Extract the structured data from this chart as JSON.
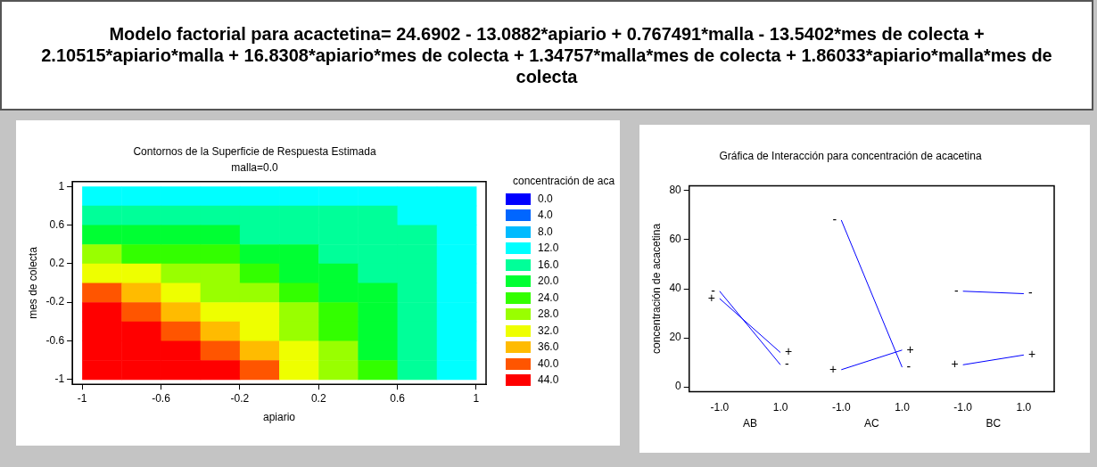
{
  "chart_data": [
    {
      "type": "heatmap",
      "title": "Contornos de la Superficie de Respuesta Estimada",
      "subtitle": "malla=0.0",
      "xlabel": "apiario",
      "ylabel": "mes de colecta",
      "clabel": "concentración de aca",
      "annotations": [
        "Modelo factorial para acactetina= 24.6902 - 13.0882*apiario + 0.767491*malla - 13.5402*mes de colecta + 2.10515*apiario*malla + 16.8308*apiario*mes de colecta + 1.34757*malla*mes de colecta + 1.86033*apiario*malla*mes de colecta"
      ],
      "x": [
        -0.9,
        -0.7,
        -0.5,
        -0.3,
        -0.1,
        0.1,
        0.3,
        0.5,
        0.7,
        0.9
      ],
      "y": [
        0.9,
        0.7,
        0.5,
        0.3,
        0.1,
        -0.1,
        -0.3,
        -0.5,
        -0.7,
        -0.9
      ],
      "cells": [
        [
          11,
          11,
          11,
          12,
          12,
          13,
          13,
          14,
          14,
          14
        ],
        [
          16,
          16,
          16,
          16,
          15,
          15,
          15,
          15,
          14,
          14
        ],
        [
          22,
          21,
          20,
          19,
          18,
          17,
          17,
          16,
          15,
          14
        ],
        [
          28,
          26,
          25,
          23,
          21,
          20,
          18,
          17,
          15,
          13
        ],
        [
          34,
          31,
          29,
          27,
          24,
          22,
          20,
          18,
          15,
          13
        ],
        [
          39,
          36,
          33,
          30,
          28,
          25,
          22,
          19,
          16,
          13
        ],
        [
          45,
          41,
          38,
          34,
          31,
          27,
          23,
          20,
          16,
          12
        ],
        [
          51,
          47,
          42,
          38,
          34,
          29,
          25,
          21,
          16,
          12
        ],
        [
          57,
          52,
          47,
          42,
          37,
          32,
          27,
          22,
          17,
          12
        ],
        [
          62,
          57,
          51,
          45,
          40,
          34,
          28,
          23,
          17,
          11
        ]
      ],
      "cticks": [
        {
          "value": 0,
          "label": "0.0"
        },
        {
          "value": 4,
          "label": "4.0"
        },
        {
          "value": 8,
          "label": "8.0"
        },
        {
          "value": 12,
          "label": "12.0"
        },
        {
          "value": 16,
          "label": "16.0"
        },
        {
          "value": 20,
          "label": "20.0"
        },
        {
          "value": 24,
          "label": "24.0"
        },
        {
          "value": 28,
          "label": "28.0"
        },
        {
          "value": 32,
          "label": "32.0"
        },
        {
          "value": 36,
          "label": "36.0"
        },
        {
          "value": 40,
          "label": "40.0"
        },
        {
          "value": 44,
          "label": "44.0"
        }
      ],
      "xlim": [
        -1.05,
        1.05
      ],
      "ylim": [
        -1.05,
        1.05
      ],
      "xticks": [
        -1,
        -0.6,
        -0.2,
        0.2,
        0.6,
        1
      ],
      "yticks": [
        -1,
        -0.6,
        -0.2,
        0.2,
        0.6,
        1
      ]
    },
    {
      "type": "line",
      "title": "Gráfica de Interacción para concentración de acacetina",
      "ylabel": "concentración de acacetina",
      "categories": [
        "-1.0",
        "1.0",
        "-1.0",
        "1.0",
        "-1.0",
        "1.0"
      ],
      "series": [
        {
          "color": "#0000ff",
          "values": [
            39,
            9,
            null,
            null,
            null,
            null
          ],
          "value_labels": [
            "-",
            "-",
            null,
            null,
            null,
            null
          ]
        },
        {
          "color": "#0000ff",
          "values": [
            36,
            14,
            null,
            null,
            null,
            null
          ],
          "value_labels": [
            "+",
            "+",
            null,
            null,
            null,
            null
          ]
        },
        {
          "color": "#0000ff",
          "values": [
            null,
            null,
            68,
            8,
            null,
            null
          ],
          "value_labels": [
            null,
            null,
            "-",
            "-",
            null,
            null
          ]
        },
        {
          "color": "#0000ff",
          "values": [
            null,
            null,
            7,
            15,
            null,
            null
          ],
          "value_labels": [
            null,
            null,
            "+",
            "+",
            null,
            null
          ]
        },
        {
          "color": "#0000ff",
          "values": [
            null,
            null,
            null,
            null,
            39,
            38
          ],
          "value_labels": [
            null,
            null,
            null,
            null,
            "-",
            "-"
          ]
        },
        {
          "color": "#0000ff",
          "values": [
            null,
            null,
            null,
            null,
            9,
            13
          ],
          "value_labels": [
            null,
            null,
            null,
            null,
            "+",
            "+"
          ]
        }
      ],
      "annotations": [
        "AB",
        "AC",
        "BC"
      ],
      "ylim": [
        -2,
        82
      ],
      "yticks": [
        0,
        20,
        40,
        60,
        80
      ],
      "marker": "none"
    }
  ]
}
